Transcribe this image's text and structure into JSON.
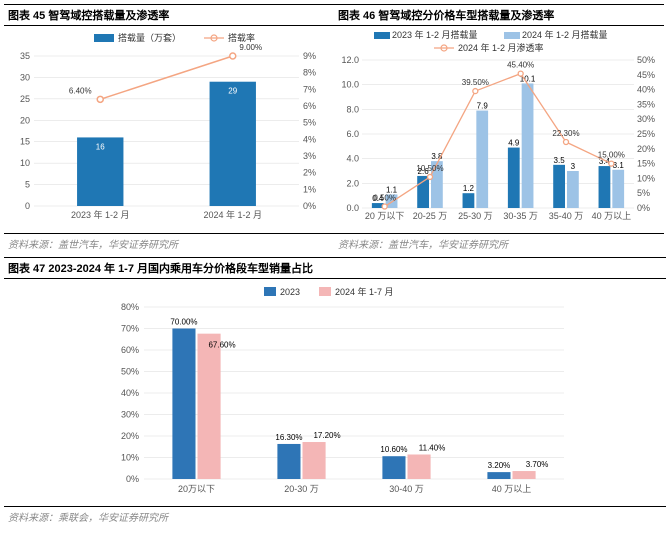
{
  "colors": {
    "bar_blue": "#1f77b4",
    "bar_blue2": "#2e75b6",
    "bar_lightblue": "#9dc3e6",
    "bar_pink": "#f4b6b6",
    "line_salmon": "#f4a582",
    "marker_salmon": "#f4a582",
    "grid": "#d9d9d9",
    "axis": "#555555",
    "title_band": "#ffffff"
  },
  "chart45": {
    "title": "图表 45 智驾域控搭载量及渗透率",
    "source": "资料来源：盖世汽车，华安证券研究所",
    "legend_bar": "搭载量（万套）",
    "legend_line": "搭载率",
    "categories": [
      "2023 年 1-2 月",
      "2024 年 1-2 月"
    ],
    "bars": [
      16,
      29
    ],
    "line_pct": [
      6.4,
      9.0
    ],
    "y1_max": 35,
    "y1_step": 5,
    "y2_max": 9,
    "y2_step": 1,
    "y2_suffix": "%"
  },
  "chart46": {
    "title": "图表 46 智驾域控分价格车型搭载量及渗透率",
    "source": "资料来源：盖世汽车，华安证券研究所",
    "legend_bar1": "2023 年 1-2 月搭载量",
    "legend_bar2": "2024 年 1-2 月搭载量",
    "legend_line": "2024 年 1-2 月渗透率",
    "categories": [
      "20 万以下",
      "20-25 万",
      "25-30 万",
      "30-35 万",
      "35-40 万",
      "40 万以上"
    ],
    "bar1": [
      0.4,
      2.6,
      1.2,
      4.9,
      3.5,
      3.4
    ],
    "bar2": [
      1.1,
      3.8,
      7.9,
      10.1,
      3.0,
      3.1
    ],
    "line_pct": [
      0.5,
      10.5,
      39.5,
      45.4,
      22.3,
      15.0
    ],
    "y1_max": 12,
    "y1_step": 2,
    "y2_max": 50,
    "y2_step": 5,
    "y2_suffix": "%"
  },
  "chart47": {
    "title": "图表 47 2023-2024 年 1-7 月国内乘用车分价格段车型销量占比",
    "source": "资料来源：乘联会，华安证券研究所",
    "legend1": "2023",
    "legend2": "2024 年 1-7 月",
    "categories": [
      "20万以下",
      "20-30 万",
      "30-40 万",
      "40 万以上"
    ],
    "series1": [
      70.0,
      16.3,
      10.6,
      3.2
    ],
    "series2": [
      67.6,
      17.2,
      11.4,
      3.7
    ],
    "y_max": 80,
    "y_step": 10,
    "y_suffix": "%"
  }
}
